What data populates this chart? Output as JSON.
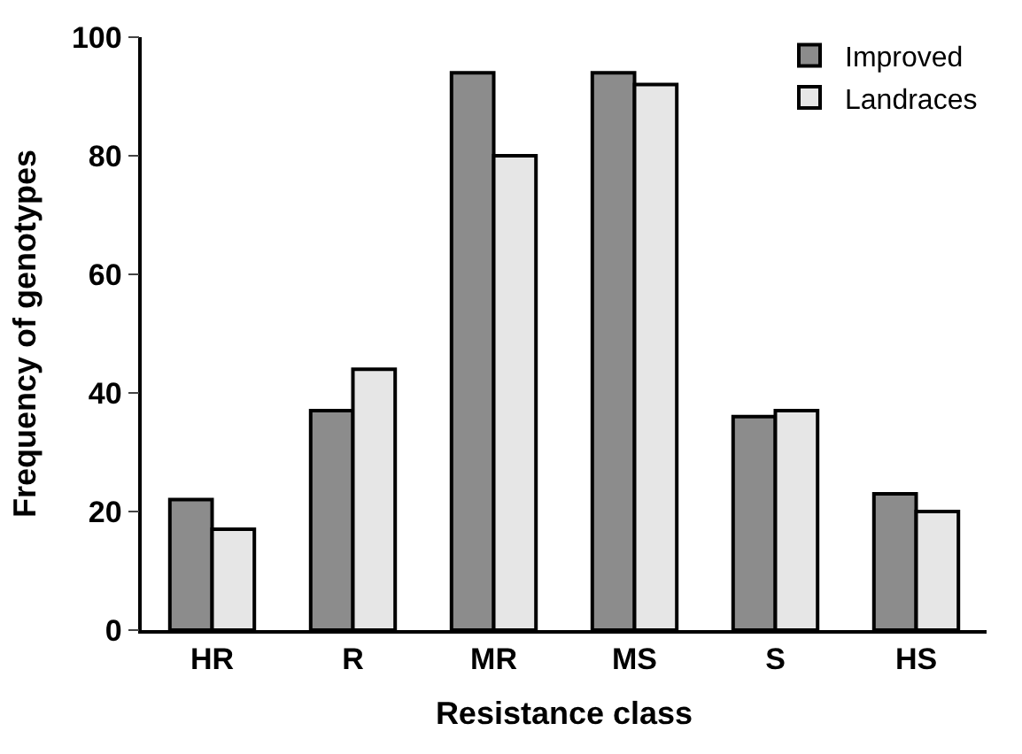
{
  "chart_data": {
    "type": "bar",
    "xlabel": "Resistance class",
    "ylabel": "Frequency of genotypes",
    "categories": [
      "HR",
      "R",
      "MR",
      "MS",
      "S",
      "HS"
    ],
    "series": [
      {
        "name": "Improved",
        "color": "#8c8c8c",
        "values": [
          22,
          37,
          94,
          94,
          36,
          23
        ]
      },
      {
        "name": "Landraces",
        "color": "#e6e6e6",
        "values": [
          17,
          44,
          80,
          92,
          37,
          20
        ]
      }
    ],
    "ylim": [
      0,
      100
    ],
    "yticks": [
      0,
      20,
      40,
      60,
      80,
      100
    ],
    "grid": false,
    "legend": "top right"
  }
}
